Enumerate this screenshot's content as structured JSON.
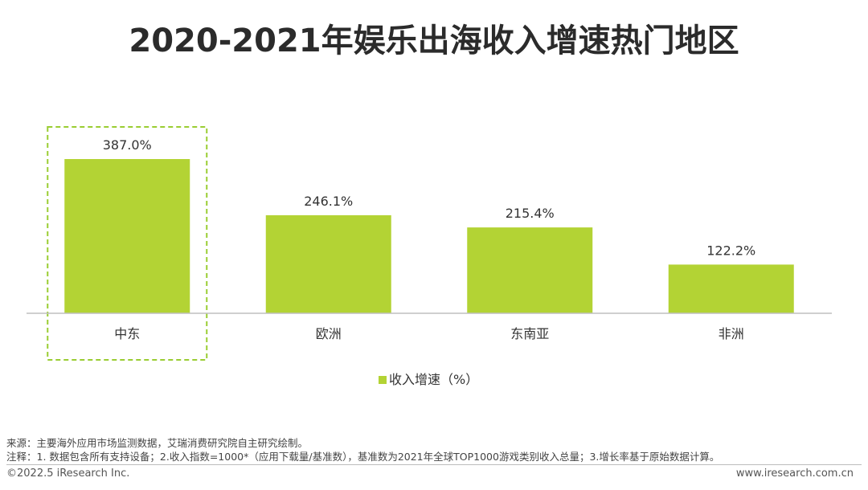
{
  "title": "2020-2021年娱乐出海收入增速热门地区",
  "colors": {
    "bar": "#b3d334",
    "highlight_border": "#9acd32",
    "axis": "#bfbfbf"
  },
  "chart_data": {
    "type": "bar",
    "title": "2020-2021年娱乐出海收入增速热门地区",
    "categories": [
      "中东",
      "欧洲",
      "东南亚",
      "非洲"
    ],
    "series": [
      {
        "name": "收入增速（%）",
        "values": [
          387.0,
          246.1,
          215.4,
          122.2
        ],
        "labels": [
          "387.0%",
          "246.1%",
          "215.4%",
          "122.2%"
        ]
      }
    ],
    "legend_position": "bottom",
    "grid": false,
    "ylim": [
      0,
      400
    ],
    "highlighted_category": "中东"
  },
  "footer": {
    "source": "来源：主要海外应用市场监测数据，艾瑞消费研究院自主研究绘制。",
    "note": "注释：1. 数据包含所有支持设备；2.收入指数=1000*（应用下载量/基准数），基准数为2021年全球TOP1000游戏类别收入总量；3.增长率基于原始数据计算。",
    "copyright": "©2022.5 iResearch Inc.",
    "website": "www.iresearch.com.cn"
  }
}
